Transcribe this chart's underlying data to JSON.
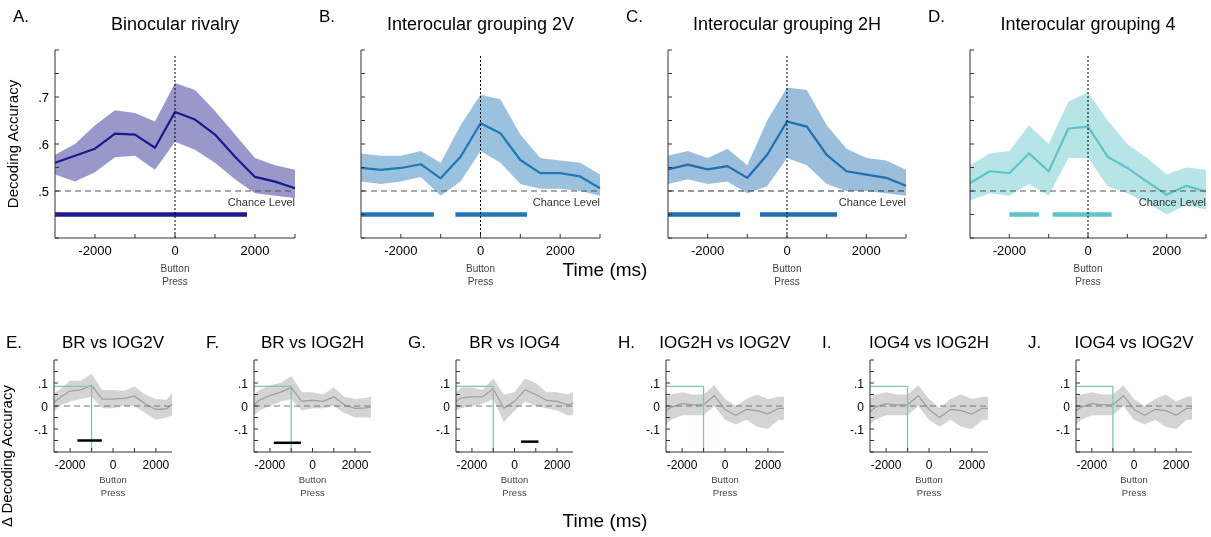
{
  "chart_data": [
    {
      "type": "line",
      "title": "Binocular rivalry",
      "ylabel": "Decoding Accuracy",
      "annotations": [
        "A."
      ],
      "xlim": [
        -3000,
        3000
      ],
      "ylim": [
        0.4,
        0.8
      ],
      "xticks": [
        -2000,
        {
          "value": -1000,
          "label": null
        },
        0,
        {
          "value": 1000,
          "label": null
        },
        2000,
        {
          "value": 3000,
          "label": null
        }
      ],
      "yticks": [
        {
          "value": 0.4,
          "label": null
        },
        {
          "value": 0.45,
          "label": null
        },
        {
          "value": 0.5,
          "label": ".5"
        },
        {
          "value": 0.55,
          "label": null
        },
        {
          "value": 0.6,
          "label": ".6"
        },
        {
          "value": 0.65,
          "label": null
        },
        {
          "value": 0.7,
          "label": ".7"
        },
        {
          "value": 0.75,
          "label": null
        },
        {
          "value": 0.8,
          "label": null
        }
      ],
      "ref_lines": [
        {
          "axis": "y",
          "value": 0.5,
          "label": "Chance Level",
          "line_style": "dashed",
          "color": "#555555"
        },
        {
          "axis": "x",
          "value": 0,
          "label": "Button Press",
          "line_style": "dotted",
          "color": "#000000"
        }
      ],
      "series": [
        {
          "color": "#1a1a8c",
          "x": [
            -3000,
            -2500,
            -2000,
            -1500,
            -1000,
            -500,
            0,
            500,
            1000,
            1500,
            2000,
            2500,
            3000
          ],
          "values": [
            0.56,
            0.575,
            0.59,
            0.622,
            0.62,
            0.592,
            0.668,
            0.652,
            0.62,
            0.573,
            0.53,
            0.52,
            0.506
          ],
          "upper": [
            0.577,
            0.6,
            0.64,
            0.672,
            0.666,
            0.648,
            0.73,
            0.715,
            0.67,
            0.62,
            0.57,
            0.555,
            0.545
          ],
          "lower": [
            0.535,
            0.52,
            0.54,
            0.572,
            0.575,
            0.545,
            0.605,
            0.588,
            0.56,
            0.525,
            0.495,
            0.49,
            0.485
          ]
        },
        {
          "color": "#1a1a8c",
          "x": [
            -3000,
            1800
          ],
          "values": [
            0.45,
            0.45
          ]
        }
      ]
    },
    {
      "type": "line",
      "title": "Interocular grouping 2V",
      "xlabel": "Time (ms)",
      "annotations": [
        "B."
      ],
      "xlim": [
        -3000,
        3000
      ],
      "ylim": [
        0.4,
        0.8
      ],
      "tick_labels": "x",
      "xticks": [
        -2000,
        {
          "value": -1000,
          "label": null
        },
        0,
        {
          "value": 1000,
          "label": null
        },
        2000,
        {
          "value": 3000,
          "label": null
        }
      ],
      "yticks": [
        0.4,
        0.45,
        0.5,
        0.55,
        0.6,
        0.65,
        0.7,
        0.75,
        0.8
      ],
      "ref_lines": [
        {
          "axis": "y",
          "value": 0.5,
          "label": "Chance Level",
          "line_style": "dashed",
          "color": "#555555"
        },
        {
          "axis": "x",
          "value": 0,
          "label": "Button Press",
          "line_style": "dotted",
          "color": "#000000"
        }
      ],
      "series": [
        {
          "color": "#1f78b8",
          "x": [
            -3000,
            -2500,
            -2000,
            -1500,
            -1000,
            -500,
            0,
            500,
            1000,
            1500,
            2000,
            2500,
            3000
          ],
          "values": [
            0.549,
            0.545,
            0.549,
            0.557,
            0.527,
            0.573,
            0.644,
            0.623,
            0.566,
            0.538,
            0.538,
            0.531,
            0.506
          ],
          "upper": [
            0.58,
            0.575,
            0.575,
            0.585,
            0.56,
            0.64,
            0.705,
            0.695,
            0.62,
            0.57,
            0.565,
            0.56,
            0.535
          ],
          "lower": [
            0.52,
            0.515,
            0.52,
            0.53,
            0.49,
            0.52,
            0.585,
            0.56,
            0.515,
            0.505,
            0.505,
            0.5,
            0.49
          ]
        },
        {
          "color": "#1f78b8",
          "x": [
            -3000,
            -1170
          ],
          "values": [
            0.45,
            0.45
          ]
        },
        {
          "color": "#1f78b8",
          "x": [
            -630,
            1170
          ],
          "values": [
            0.45,
            0.45
          ]
        }
      ]
    },
    {
      "type": "line",
      "title": "Interocular grouping 2H",
      "annotations": [
        "C."
      ],
      "xlim": [
        -3000,
        3000
      ],
      "ylim": [
        0.4,
        0.8
      ],
      "tick_labels": "x",
      "xticks": [
        -2000,
        {
          "value": -1000,
          "label": null
        },
        0,
        {
          "value": 1000,
          "label": null
        },
        2000,
        {
          "value": 3000,
          "label": null
        }
      ],
      "yticks": [
        0.4,
        0.45,
        0.5,
        0.55,
        0.6,
        0.65,
        0.7,
        0.75,
        0.8
      ],
      "ref_lines": [
        {
          "axis": "y",
          "value": 0.5,
          "label": "Chance Level",
          "line_style": "dashed",
          "color": "#333333"
        },
        {
          "axis": "x",
          "value": 0,
          "label": "Button Press",
          "line_style": "dotted",
          "color": "#000000"
        }
      ],
      "series": [
        {
          "color": "#1f6fb0",
          "x": [
            -3000,
            -2500,
            -2000,
            -1500,
            -1000,
            -500,
            0,
            500,
            1000,
            1500,
            2000,
            2500,
            3000
          ],
          "values": [
            0.546,
            0.556,
            0.546,
            0.553,
            0.528,
            0.577,
            0.648,
            0.637,
            0.577,
            0.542,
            0.535,
            0.528,
            0.511
          ],
          "upper": [
            0.575,
            0.585,
            0.57,
            0.59,
            0.555,
            0.65,
            0.72,
            0.715,
            0.64,
            0.59,
            0.57,
            0.565,
            0.545
          ],
          "lower": [
            0.515,
            0.525,
            0.515,
            0.52,
            0.495,
            0.51,
            0.57,
            0.555,
            0.515,
            0.5,
            0.5,
            0.495,
            0.49
          ]
        },
        {
          "color": "#1f6fb0",
          "x": [
            -3000,
            -1180
          ],
          "values": [
            0.45,
            0.45
          ]
        },
        {
          "color": "#1f6fb0",
          "x": [
            -680,
            1260
          ],
          "values": [
            0.45,
            0.45
          ]
        }
      ]
    },
    {
      "type": "line",
      "title": "Interocular grouping 4",
      "annotations": [
        "D."
      ],
      "xlim": [
        -3000,
        3000
      ],
      "ylim": [
        0.4,
        0.8
      ],
      "tick_labels": "x",
      "xticks": [
        -2000,
        {
          "value": -1000,
          "label": null
        },
        0,
        {
          "value": 1000,
          "label": null
        },
        2000,
        {
          "value": 3000,
          "label": null
        }
      ],
      "yticks": [
        0.4,
        0.45,
        0.5,
        0.55,
        0.6,
        0.65,
        0.7,
        0.75,
        0.8
      ],
      "ref_lines": [
        {
          "axis": "y",
          "value": 0.5,
          "label": "Chance Level",
          "line_style": "dashed",
          "color": "#555555"
        },
        {
          "axis": "x",
          "value": 0,
          "label": "Button Press",
          "line_style": "dotted",
          "color": "#000000"
        }
      ],
      "series": [
        {
          "color": "#5ec4c8",
          "x": [
            -3000,
            -2500,
            -2000,
            -1500,
            -1000,
            -500,
            0,
            500,
            1000,
            1500,
            2000,
            2500,
            3000
          ],
          "values": [
            0.517,
            0.542,
            0.538,
            0.58,
            0.542,
            0.633,
            0.637,
            0.573,
            0.549,
            0.52,
            0.492,
            0.511,
            0.499
          ],
          "upper": [
            0.555,
            0.58,
            0.585,
            0.64,
            0.6,
            0.69,
            0.71,
            0.65,
            0.6,
            0.57,
            0.535,
            0.55,
            0.545
          ],
          "lower": [
            0.48,
            0.495,
            0.49,
            0.515,
            0.49,
            0.57,
            0.57,
            0.51,
            0.495,
            0.475,
            0.45,
            0.47,
            0.46
          ]
        },
        {
          "color": "#5ec4c8",
          "x": [
            -2000,
            -1250
          ],
          "values": [
            0.45,
            0.45
          ]
        },
        {
          "color": "#5ec4c8",
          "x": [
            -900,
            600
          ],
          "values": [
            0.45,
            0.45
          ]
        }
      ]
    },
    {
      "type": "line",
      "title": "BR vs IOG2V",
      "ylabel": "Δ Decoding Accuracy",
      "annotations": [
        "E.",
        "Button Press"
      ],
      "xlim": [
        -2750,
        2750
      ],
      "ylim": [
        -0.2,
        0.2
      ],
      "xticks": [
        -2000,
        {
          "value": -1000,
          "label": null
        },
        0,
        {
          "value": 1000,
          "label": null
        },
        2000
      ],
      "yticks": [
        {
          "value": -0.2,
          "label": null
        },
        {
          "value": -0.15,
          "label": null
        },
        {
          "value": -0.1,
          "label": "-.1"
        },
        {
          "value": -0.05,
          "label": null
        },
        0,
        {
          "value": 0.05,
          "label": null
        },
        {
          "value": 0.1,
          "label": ".1"
        },
        {
          "value": 0.15,
          "label": null
        },
        {
          "value": 0.2,
          "label": null
        }
      ],
      "ref_lines": [
        {
          "axis": "y",
          "value": 0,
          "line_style": "dashed",
          "color": "#777777"
        }
      ],
      "series": [
        {
          "color": "#a0a0a0",
          "x": [
            -2750,
            -2500,
            -2000,
            -1500,
            -1000,
            -500,
            0,
            500,
            1000,
            1500,
            2000,
            2500,
            2750
          ],
          "values": [
            0.016,
            0.035,
            0.065,
            0.07,
            0.09,
            0.03,
            0.03,
            0.033,
            0.043,
            0.01,
            -0.015,
            -0.012,
            0.008
          ],
          "upper": [
            0.056,
            0.07,
            0.11,
            0.11,
            0.14,
            0.07,
            0.07,
            0.065,
            0.085,
            0.05,
            0.03,
            0.027,
            0.056
          ],
          "lower": [
            -0.024,
            0.0,
            0.02,
            0.03,
            0.04,
            -0.01,
            -0.01,
            0.0,
            0.0,
            -0.03,
            -0.06,
            -0.05,
            -0.04
          ]
        },
        {
          "color": "#7cc8b8",
          "x": [
            -2750,
            -1000,
            -1000
          ],
          "values": [
            0.085,
            0.085,
            -0.2
          ]
        },
        {
          "color": "#000000",
          "x": [
            -1660,
            -520
          ],
          "values": [
            -0.15,
            -0.15
          ]
        }
      ]
    },
    {
      "type": "line",
      "title": "BR vs IOG2H",
      "annotations": [
        "F.",
        "Button Press"
      ],
      "xlim": [
        -2750,
        2750
      ],
      "ylim": [
        -0.2,
        0.2
      ],
      "xticks": [
        -2000,
        {
          "value": -1000,
          "label": null
        },
        0,
        {
          "value": 1000,
          "label": null
        },
        2000
      ],
      "yticks": [
        {
          "value": -0.2,
          "label": null
        },
        {
          "value": -0.15,
          "label": null
        },
        {
          "value": -0.1,
          "label": "-.1"
        },
        {
          "value": -0.05,
          "label": null
        },
        0,
        {
          "value": 0.05,
          "label": null
        },
        {
          "value": 0.1,
          "label": ".1"
        },
        {
          "value": 0.15,
          "label": null
        },
        {
          "value": 0.2,
          "label": null
        }
      ],
      "ref_lines": [
        {
          "axis": "y",
          "value": 0,
          "line_style": "dashed",
          "color": "#777777"
        }
      ],
      "series": [
        {
          "color": "#a0a0a0",
          "x": [
            -2750,
            -2500,
            -2000,
            -1500,
            -1000,
            -500,
            0,
            500,
            1000,
            1500,
            2000,
            2500,
            2750
          ],
          "values": [
            0.005,
            0.025,
            0.045,
            0.06,
            0.08,
            0.02,
            0.025,
            0.02,
            0.04,
            0.005,
            -0.01,
            -0.008,
            -0.005
          ],
          "upper": [
            0.05,
            0.07,
            0.09,
            0.1,
            0.13,
            0.06,
            0.06,
            0.05,
            0.08,
            0.04,
            0.03,
            0.035,
            0.04
          ],
          "lower": [
            -0.04,
            -0.02,
            0.0,
            0.02,
            0.03,
            -0.02,
            -0.01,
            -0.01,
            0.0,
            -0.03,
            -0.05,
            -0.05,
            -0.05
          ]
        },
        {
          "color": "#7cc8b8",
          "x": [
            -2750,
            -1000,
            -1000
          ],
          "values": [
            0.085,
            0.085,
            -0.2
          ]
        },
        {
          "color": "#000000",
          "x": [
            -1820,
            -545
          ],
          "values": [
            -0.16,
            -0.16
          ]
        }
      ]
    },
    {
      "type": "line",
      "title": "BR vs IOG4",
      "annotations": [
        "G.",
        "Button Press"
      ],
      "xlim": [
        -2750,
        2750
      ],
      "ylim": [
        -0.2,
        0.2
      ],
      "xticks": [
        -2000,
        {
          "value": -1000,
          "label": null
        },
        0,
        {
          "value": 1000,
          "label": null
        },
        2000
      ],
      "yticks": [
        {
          "value": -0.2,
          "label": null
        },
        {
          "value": -0.15,
          "label": null
        },
        {
          "value": -0.1,
          "label": "-.1"
        },
        {
          "value": -0.05,
          "label": null
        },
        0,
        {
          "value": 0.05,
          "label": null
        },
        {
          "value": 0.1,
          "label": ".1"
        },
        {
          "value": 0.15,
          "label": null
        },
        {
          "value": 0.2,
          "label": null
        }
      ],
      "ref_lines": [
        {
          "axis": "y",
          "value": 0,
          "line_style": "dashed",
          "color": "#777777"
        }
      ],
      "series": [
        {
          "color": "#a0a0a0",
          "x": [
            -2750,
            -2500,
            -2000,
            -1500,
            -1000,
            -500,
            0,
            500,
            1000,
            1500,
            2000,
            2500,
            2750
          ],
          "values": [
            0.02,
            0.035,
            0.04,
            0.04,
            0.075,
            -0.01,
            0.02,
            0.07,
            0.05,
            0.025,
            0.02,
            0.005,
            0.01
          ],
          "upper": [
            0.06,
            0.08,
            0.08,
            0.07,
            0.12,
            0.05,
            0.06,
            0.12,
            0.1,
            0.06,
            0.06,
            0.05,
            0.06
          ],
          "lower": [
            -0.02,
            -0.01,
            0.0,
            0.01,
            0.03,
            -0.07,
            -0.02,
            0.02,
            0.0,
            -0.01,
            -0.02,
            -0.04,
            -0.04
          ]
        },
        {
          "color": "#7cc8b8",
          "x": [
            -2750,
            -1000,
            -1000
          ],
          "values": [
            0.085,
            0.085,
            -0.2
          ]
        },
        {
          "color": "#000000",
          "x": [
            310,
            1130
          ],
          "values": [
            -0.155,
            -0.155
          ]
        }
      ]
    },
    {
      "type": "line",
      "title": "IOG2H vs IOG2V",
      "xlabel": "Time (ms)",
      "annotations": [
        "H.",
        "Button Press"
      ],
      "xlim": [
        -2750,
        2750
      ],
      "ylim": [
        -0.2,
        0.2
      ],
      "xticks": [
        -2000,
        {
          "value": -1000,
          "label": null
        },
        0,
        {
          "value": 1000,
          "label": null
        },
        2000
      ],
      "yticks": [
        {
          "value": -0.2,
          "label": null
        },
        {
          "value": -0.15,
          "label": null
        },
        {
          "value": -0.1,
          "label": "-.1"
        },
        {
          "value": -0.05,
          "label": null
        },
        0,
        {
          "value": 0.05,
          "label": null
        },
        {
          "value": 0.1,
          "label": ".1"
        },
        {
          "value": 0.15,
          "label": null
        },
        {
          "value": 0.2,
          "label": null
        }
      ],
      "ref_lines": [
        {
          "axis": "y",
          "value": 0,
          "line_style": "dashed",
          "color": "#777777"
        }
      ],
      "series": [
        {
          "color": "#a0a0a0",
          "x": [
            -2750,
            -2500,
            -2000,
            -1500,
            -1000,
            -500,
            0,
            500,
            1000,
            1500,
            2000,
            2500,
            2750
          ],
          "values": [
            -0.02,
            -0.005,
            0.01,
            0.005,
            0.005,
            0.045,
            -0.015,
            -0.04,
            -0.015,
            -0.02,
            -0.035,
            -0.01,
            -0.01
          ],
          "upper": [
            0.04,
            0.05,
            0.06,
            0.05,
            0.05,
            0.09,
            0.03,
            0.0,
            0.03,
            0.05,
            0.03,
            0.04,
            0.04
          ],
          "lower": [
            -0.08,
            -0.06,
            -0.04,
            -0.04,
            -0.04,
            0.0,
            -0.06,
            -0.08,
            -0.06,
            -0.09,
            -0.1,
            -0.06,
            -0.06
          ]
        },
        {
          "color": "#7cc8b8",
          "x": [
            -2750,
            -1000,
            -1000
          ],
          "values": [
            0.085,
            0.085,
            -0.2
          ]
        }
      ]
    },
    {
      "type": "line",
      "title": "IOG4 vs IOG2H",
      "annotations": [
        "I.",
        "Button Press"
      ],
      "xlim": [
        -2750,
        2750
      ],
      "ylim": [
        -0.2,
        0.2
      ],
      "xticks": [
        -2000,
        {
          "value": -1000,
          "label": null
        },
        0,
        {
          "value": 1000,
          "label": null
        },
        2000
      ],
      "yticks": [
        {
          "value": -0.2,
          "label": null
        },
        {
          "value": -0.15,
          "label": null
        },
        {
          "value": -0.1,
          "label": "-.1"
        },
        {
          "value": -0.05,
          "label": null
        },
        0,
        {
          "value": 0.05,
          "label": null
        },
        {
          "value": 0.1,
          "label": ".1"
        },
        {
          "value": 0.15,
          "label": null
        },
        {
          "value": 0.2,
          "label": null
        }
      ],
      "ref_lines": [
        {
          "axis": "y",
          "value": 0,
          "line_style": "dashed",
          "color": "#777777"
        }
      ],
      "series": [
        {
          "color": "#a0a0a0",
          "x": [
            -2750,
            -2500,
            -2000,
            -1500,
            -1000,
            -500,
            0,
            500,
            1000,
            1500,
            2000,
            2500,
            2750
          ],
          "values": [
            -0.025,
            -0.005,
            0.01,
            0.005,
            0.005,
            0.045,
            -0.015,
            -0.05,
            -0.015,
            -0.02,
            -0.035,
            -0.01,
            -0.01
          ],
          "upper": [
            0.03,
            0.05,
            0.06,
            0.05,
            0.05,
            0.09,
            0.03,
            -0.01,
            0.03,
            0.05,
            0.03,
            0.04,
            0.04
          ],
          "lower": [
            -0.08,
            -0.06,
            -0.04,
            -0.04,
            -0.04,
            0.0,
            -0.06,
            -0.09,
            -0.06,
            -0.09,
            -0.1,
            -0.06,
            -0.06
          ]
        },
        {
          "color": "#7cc8b8",
          "x": [
            -2750,
            -1000,
            -1000
          ],
          "values": [
            0.085,
            0.085,
            -0.2
          ]
        }
      ]
    },
    {
      "type": "line",
      "title": "IOG4 vs IOG2V",
      "annotations": [
        "J.",
        "Button Press"
      ],
      "xlim": [
        -2750,
        2750
      ],
      "ylim": [
        -0.2,
        0.2
      ],
      "xticks": [
        -2000,
        {
          "value": -1000,
          "label": null
        },
        0,
        {
          "value": 1000,
          "label": null
        },
        2000
      ],
      "yticks": [
        {
          "value": -0.2,
          "label": null
        },
        {
          "value": -0.15,
          "label": null
        },
        {
          "value": -0.1,
          "label": "-.1"
        },
        {
          "value": -0.05,
          "label": null
        },
        0,
        {
          "value": 0.05,
          "label": null
        },
        {
          "value": 0.1,
          "label": ".1"
        },
        {
          "value": 0.15,
          "label": null
        },
        {
          "value": 0.2,
          "label": null
        }
      ],
      "ref_lines": [
        {
          "axis": "y",
          "value": 0,
          "line_style": "dashed",
          "color": "#777777"
        }
      ],
      "series": [
        {
          "color": "#a0a0a0",
          "x": [
            -2750,
            -2500,
            -2000,
            -1500,
            -1000,
            -500,
            0,
            500,
            1000,
            1500,
            2000,
            2500,
            2750
          ],
          "values": [
            -0.02,
            -0.005,
            0.01,
            0.005,
            0.005,
            0.045,
            -0.015,
            -0.04,
            -0.015,
            -0.02,
            -0.04,
            -0.01,
            -0.01
          ],
          "upper": [
            0.04,
            0.05,
            0.06,
            0.05,
            0.05,
            0.09,
            0.03,
            0.0,
            0.03,
            0.05,
            0.02,
            0.04,
            0.04
          ],
          "lower": [
            -0.08,
            -0.06,
            -0.04,
            -0.04,
            -0.04,
            0.0,
            -0.06,
            -0.08,
            -0.06,
            -0.09,
            -0.1,
            -0.06,
            -0.06
          ]
        },
        {
          "color": "#7cc8b8",
          "x": [
            -2750,
            -1000,
            -1000
          ],
          "values": [
            0.085,
            0.085,
            -0.2
          ]
        }
      ]
    }
  ]
}
